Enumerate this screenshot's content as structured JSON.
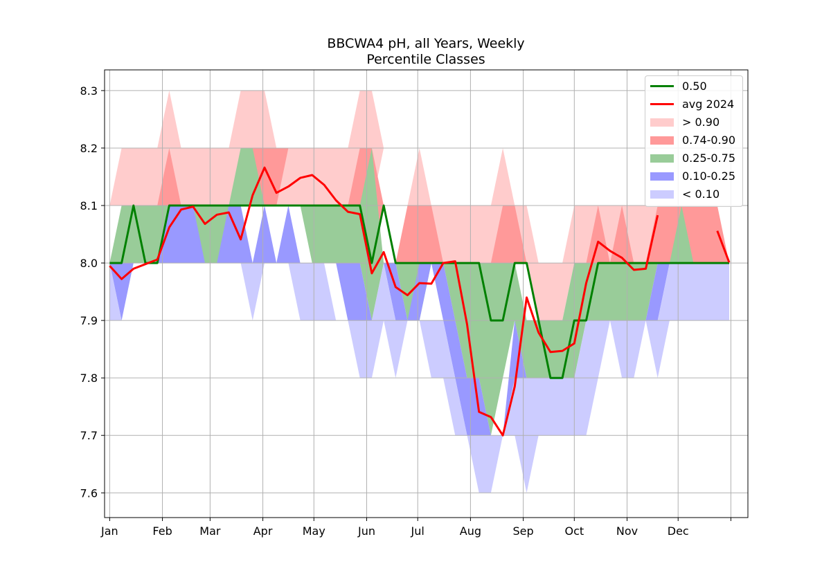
{
  "chart_data": {
    "type": "area",
    "title": "BBCWA4 pH, all Years, Weekly",
    "subtitle": "Percentile Classes",
    "xlabel": "",
    "ylabel": "",
    "xlim": [
      -3,
      375
    ],
    "ylim": [
      7.557,
      8.336
    ],
    "x_ticks": [
      {
        "value": 0,
        "label": "Jan"
      },
      {
        "value": 31,
        "label": "Feb"
      },
      {
        "value": 59,
        "label": "Mar"
      },
      {
        "value": 90,
        "label": "Apr"
      },
      {
        "value": 120,
        "label": "May"
      },
      {
        "value": 151,
        "label": "Jun"
      },
      {
        "value": 181,
        "label": "Jul"
      },
      {
        "value": 212,
        "label": "Aug"
      },
      {
        "value": 243,
        "label": "Sep"
      },
      {
        "value": 273,
        "label": "Oct"
      },
      {
        "value": 304,
        "label": "Nov"
      },
      {
        "value": 334,
        "label": "Dec"
      },
      {
        "value": 365,
        "label": ""
      }
    ],
    "y_ticks": [
      7.6,
      7.7,
      7.8,
      7.9,
      8.0,
      8.1,
      8.2,
      8.3
    ],
    "grid": true,
    "legend_position": "top-right",
    "x": [
      0,
      7,
      14,
      21,
      28,
      35,
      42,
      49,
      56,
      63,
      70,
      77,
      84,
      91,
      98,
      105,
      112,
      119,
      126,
      133,
      140,
      147,
      154,
      161,
      168,
      175,
      182,
      189,
      196,
      203,
      210,
      217,
      224,
      231,
      238,
      245,
      252,
      259,
      266,
      273,
      280,
      287,
      294,
      301,
      308,
      315,
      322,
      329,
      336,
      343,
      350,
      357,
      364
    ],
    "bands": [
      {
        "name": "> 0.90",
        "color": "#ffcccc",
        "lower": [
          8.1,
          8.1,
          8.1,
          8.1,
          8.1,
          8.1,
          8.1,
          8.1,
          8.1,
          8.1,
          8.1,
          8.1,
          8.1,
          8.1,
          8.1,
          8.1,
          8.1,
          8.1,
          8.1,
          8.1,
          8.1,
          8.1,
          8.1,
          8.2,
          8.1,
          8.1,
          8.0,
          8.0,
          8.0,
          8.0,
          8.0,
          8.0,
          8.0,
          8.0,
          8.0,
          8.0,
          7.9,
          7.9,
          7.9,
          8.0,
          8.0,
          8.0,
          8.0,
          8.0,
          8.0,
          8.0,
          8.0,
          8.1,
          8.1,
          8.1,
          8.1,
          8.1,
          8.0
        ],
        "upper": [
          8.1,
          8.2,
          8.2,
          8.2,
          8.2,
          8.3,
          8.2,
          8.2,
          8.2,
          8.2,
          8.2,
          8.3,
          8.3,
          8.3,
          8.2,
          8.2,
          8.2,
          8.2,
          8.2,
          8.2,
          8.2,
          8.3,
          8.3,
          8.2,
          8.1,
          8.1,
          8.2,
          8.1,
          8.1,
          8.1,
          8.1,
          8.1,
          8.1,
          8.2,
          8.1,
          8.1,
          8.0,
          8.0,
          8.0,
          8.1,
          8.1,
          8.1,
          8.1,
          8.1,
          8.1,
          8.1,
          8.1,
          8.1,
          8.1,
          8.1,
          8.1,
          8.1,
          8.0
        ]
      },
      {
        "name": "0.74-0.90",
        "color": "#ff9999",
        "lower": [
          8.0,
          8.1,
          8.1,
          8.1,
          8.1,
          8.1,
          8.1,
          8.1,
          8.1,
          8.1,
          8.1,
          8.2,
          8.1,
          8.1,
          8.1,
          8.2,
          8.2,
          8.1,
          8.1,
          8.1,
          8.1,
          8.1,
          8.0,
          8.1,
          8.0,
          8.0,
          8.0,
          8.0,
          8.0,
          8.0,
          8.0,
          8.0,
          8.0,
          8.0,
          8.0,
          8.0,
          7.9,
          7.9,
          7.9,
          8.0,
          8.0,
          8.0,
          8.0,
          8.0,
          8.0,
          8.0,
          8.0,
          8.0,
          8.0,
          8.0,
          8.0,
          8.0,
          8.0
        ],
        "upper": [
          8.0,
          8.1,
          8.1,
          8.1,
          8.1,
          8.2,
          8.1,
          8.1,
          8.1,
          8.1,
          8.1,
          8.2,
          8.2,
          8.2,
          8.2,
          8.2,
          8.2,
          8.1,
          8.1,
          8.1,
          8.1,
          8.2,
          8.2,
          8.1,
          8.0,
          8.1,
          8.1,
          8.1,
          8.0,
          8.0,
          8.0,
          8.0,
          8.0,
          8.1,
          8.1,
          8.0,
          7.9,
          7.9,
          7.9,
          8.0,
          8.0,
          8.1,
          8.0,
          8.1,
          8.0,
          8.0,
          8.1,
          8.1,
          8.1,
          8.1,
          8.1,
          8.1,
          8.0
        ]
      },
      {
        "name": "0.25-0.75",
        "color": "#99cc99",
        "lower": [
          8.0,
          8.0,
          8.0,
          8.0,
          8.0,
          8.0,
          8.0,
          8.0,
          8.0,
          8.0,
          8.0,
          8.1,
          8.1,
          8.1,
          8.1,
          8.1,
          8.1,
          8.0,
          8.0,
          8.0,
          8.0,
          8.0,
          7.9,
          8.0,
          8.0,
          7.9,
          7.9,
          8.0,
          8.0,
          7.9,
          7.8,
          7.8,
          7.7,
          7.8,
          7.9,
          7.8,
          7.8,
          7.8,
          7.8,
          7.8,
          7.9,
          7.9,
          7.9,
          7.9,
          7.9,
          7.9,
          8.0,
          8.0,
          8.0,
          8.0,
          8.0,
          8.0,
          8.0
        ],
        "upper": [
          8.0,
          8.1,
          8.1,
          8.1,
          8.1,
          8.1,
          8.1,
          8.1,
          8.1,
          8.1,
          8.1,
          8.2,
          8.2,
          8.1,
          8.1,
          8.1,
          8.1,
          8.1,
          8.1,
          8.1,
          8.1,
          8.1,
          8.2,
          8.0,
          8.0,
          8.0,
          8.0,
          8.0,
          8.0,
          8.0,
          8.0,
          8.0,
          8.0,
          8.0,
          8.0,
          7.9,
          7.9,
          7.9,
          7.9,
          8.0,
          8.0,
          8.0,
          8.0,
          8.0,
          8.0,
          8.0,
          8.0,
          8.0,
          8.1,
          8.0,
          8.0,
          8.0,
          8.0
        ]
      },
      {
        "name": "0.10-0.25",
        "color": "#9999ff",
        "lower": [
          8.0,
          7.9,
          8.0,
          8.0,
          8.0,
          8.0,
          8.0,
          8.0,
          8.0,
          8.0,
          8.0,
          8.0,
          8.0,
          8.0,
          8.0,
          8.0,
          8.0,
          8.0,
          8.0,
          8.0,
          7.9,
          7.9,
          7.9,
          8.0,
          7.9,
          7.9,
          7.9,
          8.0,
          7.9,
          7.8,
          7.7,
          7.7,
          7.7,
          7.7,
          7.8,
          7.8,
          7.8,
          7.8,
          7.8,
          7.8,
          7.9,
          7.9,
          7.9,
          7.9,
          7.9,
          7.9,
          7.9,
          8.0,
          8.0,
          8.0,
          8.0,
          8.0,
          8.0
        ],
        "upper": [
          8.0,
          8.0,
          8.0,
          8.0,
          8.0,
          8.1,
          8.1,
          8.1,
          8.0,
          8.0,
          8.1,
          8.1,
          8.0,
          8.1,
          8.0,
          8.1,
          8.0,
          8.0,
          8.0,
          8.0,
          8.0,
          8.0,
          7.9,
          8.0,
          8.0,
          7.9,
          8.0,
          8.0,
          8.0,
          7.9,
          7.8,
          7.8,
          7.7,
          7.7,
          7.9,
          7.8,
          7.8,
          7.8,
          7.8,
          7.8,
          7.9,
          7.9,
          7.9,
          7.9,
          7.9,
          7.9,
          8.0,
          8.0,
          8.0,
          8.0,
          8.0,
          8.0,
          8.0
        ]
      },
      {
        "name": "< 0.10",
        "color": "#ccccff",
        "lower": [
          7.9,
          7.9,
          7.9,
          8.0,
          8.0,
          8.0,
          8.0,
          8.0,
          8.0,
          8.0,
          8.0,
          8.0,
          7.9,
          8.0,
          8.0,
          8.0,
          7.9,
          7.9,
          7.9,
          7.9,
          7.9,
          7.8,
          7.8,
          7.9,
          7.8,
          7.9,
          7.9,
          7.8,
          7.8,
          7.7,
          7.7,
          7.6,
          7.6,
          7.7,
          7.7,
          7.6,
          7.7,
          7.7,
          7.7,
          7.7,
          7.7,
          7.8,
          7.9,
          7.8,
          7.8,
          7.9,
          7.8,
          7.9,
          7.9,
          7.9,
          7.9,
          7.9,
          7.9
        ],
        "upper": [
          8.0,
          7.9,
          7.9,
          8.0,
          8.0,
          8.0,
          8.0,
          8.0,
          8.0,
          8.0,
          8.0,
          8.0,
          8.0,
          8.0,
          8.0,
          8.0,
          8.0,
          8.0,
          8.0,
          7.9,
          7.9,
          7.9,
          7.9,
          8.0,
          7.9,
          7.9,
          7.9,
          7.9,
          7.9,
          7.8,
          7.7,
          7.7,
          7.7,
          7.7,
          7.8,
          7.8,
          7.8,
          7.8,
          7.8,
          7.8,
          7.9,
          7.9,
          7.9,
          7.9,
          7.9,
          7.9,
          7.9,
          8.0,
          8.0,
          8.0,
          8.0,
          8.0,
          8.0
        ]
      }
    ],
    "series": [
      {
        "name": "0.50",
        "color": "#008000",
        "values": [
          8.0,
          8.0,
          8.1,
          8.0,
          8.0,
          8.1,
          8.1,
          8.1,
          8.1,
          8.1,
          8.1,
          8.1,
          8.1,
          8.1,
          8.1,
          8.1,
          8.1,
          8.1,
          8.1,
          8.1,
          8.1,
          8.1,
          8.0,
          8.1,
          8.0,
          8.0,
          8.0,
          8.0,
          8.0,
          8.0,
          8.0,
          8.0,
          7.9,
          7.9,
          8.0,
          8.0,
          7.9,
          7.8,
          7.8,
          7.9,
          7.9,
          8.0,
          8.0,
          8.0,
          8.0,
          8.0,
          8.0,
          8.0,
          8.0,
          8.0,
          8.0,
          8.0,
          8.0
        ]
      },
      {
        "name": "avg 2024",
        "color": "#ff0000",
        "values": [
          7.995,
          7.972,
          7.99,
          7.998,
          8.006,
          8.062,
          8.093,
          8.098,
          8.068,
          8.084,
          8.088,
          8.041,
          8.118,
          8.166,
          8.122,
          8.133,
          8.148,
          8.153,
          8.136,
          8.109,
          8.089,
          8.085,
          7.982,
          8.019,
          7.958,
          7.944,
          7.965,
          7.964,
          8.0,
          8.003,
          7.893,
          7.741,
          7.732,
          7.7,
          7.785,
          7.94,
          7.879,
          7.845,
          7.847,
          7.86,
          7.965,
          8.037,
          8.021,
          8.009,
          7.988,
          7.99,
          8.083,
          null,
          null,
          null,
          null,
          8.056,
          8.001
        ]
      }
    ]
  }
}
